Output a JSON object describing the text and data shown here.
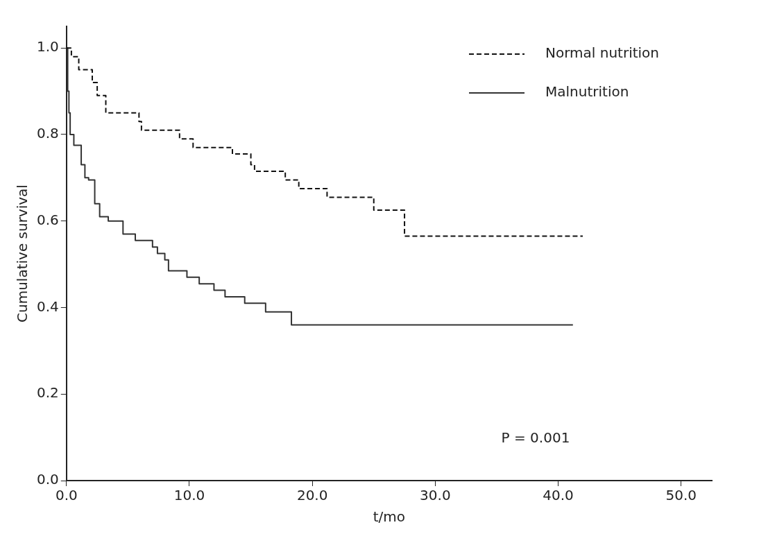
{
  "chart_data": {
    "type": "step",
    "xlabel": "t/mo",
    "ylabel": "Cumulative survival",
    "xlim": [
      0,
      52.5
    ],
    "ylim": [
      0,
      1.05
    ],
    "xticks": [
      {
        "value": 0,
        "label": "0.0"
      },
      {
        "value": 10,
        "label": "10.0"
      },
      {
        "value": 20,
        "label": "20.0"
      },
      {
        "value": 30,
        "label": "30.0"
      },
      {
        "value": 40,
        "label": "40.0"
      },
      {
        "value": 50,
        "label": "50.0"
      }
    ],
    "yticks": [
      {
        "value": 0,
        "label": "0.0"
      },
      {
        "value": 0.2,
        "label": "0.2"
      },
      {
        "value": 0.4,
        "label": "0.4"
      },
      {
        "value": 0.6,
        "label": "0.6"
      },
      {
        "value": 0.8,
        "label": "0.8"
      },
      {
        "value": 1,
        "label": "1.0"
      }
    ],
    "grid": false,
    "legend": "top right",
    "marker": "none",
    "annotations": [
      "P = 0.001"
    ],
    "series": [
      {
        "name": "Normal nutrition",
        "color": "#111111",
        "line_style": "dashed",
        "x": [
          0,
          0.4,
          1.0,
          2.1,
          2.5,
          3.2,
          5.9,
          6.1,
          9.2,
          10.3,
          13.5,
          15.0,
          15.3,
          17.8,
          18.9,
          21.2,
          25.0,
          27.5,
          42.0
        ],
        "values": [
          1.0,
          0.98,
          0.95,
          0.92,
          0.89,
          0.85,
          0.83,
          0.81,
          0.79,
          0.77,
          0.755,
          0.73,
          0.715,
          0.695,
          0.675,
          0.655,
          0.625,
          0.565,
          0.565
        ]
      },
      {
        "name": "Malnutrition",
        "color": "#333333",
        "line_style": "solid",
        "x": [
          0,
          0.1,
          0.2,
          0.3,
          0.6,
          1.2,
          1.5,
          1.8,
          2.3,
          2.7,
          3.4,
          4.6,
          5.6,
          7.0,
          7.4,
          8.0,
          8.3,
          9.8,
          10.8,
          12.0,
          12.9,
          14.5,
          16.2,
          18.3,
          41.2
        ],
        "values": [
          1.0,
          0.9,
          0.85,
          0.8,
          0.775,
          0.73,
          0.7,
          0.695,
          0.64,
          0.61,
          0.6,
          0.57,
          0.555,
          0.54,
          0.525,
          0.51,
          0.485,
          0.47,
          0.455,
          0.44,
          0.425,
          0.41,
          0.39,
          0.36,
          0.36
        ]
      }
    ]
  }
}
